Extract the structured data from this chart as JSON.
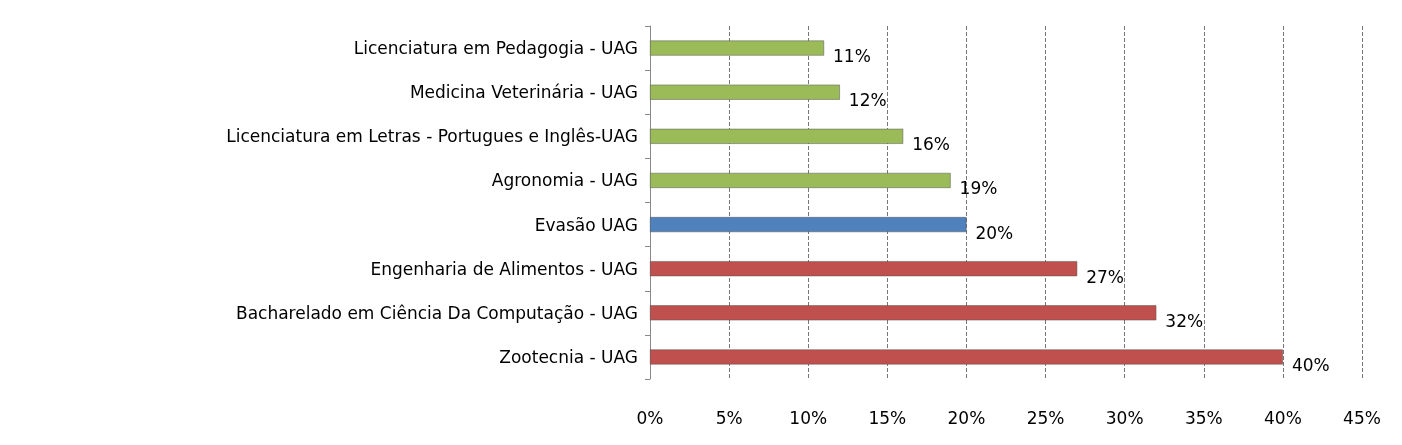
{
  "chart_data": {
    "type": "bar",
    "orientation": "horizontal",
    "categories": [
      "Licenciatura em Pedagogia - UAG",
      "Medicina Veterinária - UAG",
      "Licenciatura em Letras - Portugues e Inglês-UAG",
      "Agronomia - UAG",
      "Evasão UAG",
      "Engenharia de Alimentos - UAG",
      "Bacharelado em Ciência Da Computação - UAG",
      "Zootecnia - UAG"
    ],
    "values": [
      11,
      12,
      16,
      19,
      20,
      27,
      32,
      40
    ],
    "colors": [
      "#9bbb59",
      "#9bbb59",
      "#9bbb59",
      "#9bbb59",
      "#4f81bd",
      "#c0504d",
      "#c0504d",
      "#c0504d"
    ],
    "value_labels": [
      "11%",
      "12%",
      "16%",
      "19%",
      "20%",
      "27%",
      "32%",
      "40%"
    ],
    "xlim": [
      0,
      45
    ],
    "xticks": [
      {
        "value": 0,
        "label": "0%"
      },
      {
        "value": 5,
        "label": "5%"
      },
      {
        "value": 10,
        "label": "10%"
      },
      {
        "value": 15,
        "label": "15%"
      },
      {
        "value": 20,
        "label": "20%"
      },
      {
        "value": 25,
        "label": "25%"
      },
      {
        "value": 30,
        "label": "30%"
      },
      {
        "value": 35,
        "label": "35%"
      },
      {
        "value": 40,
        "label": "40%"
      },
      {
        "value": 45,
        "label": "45%"
      }
    ],
    "grid": "x"
  }
}
